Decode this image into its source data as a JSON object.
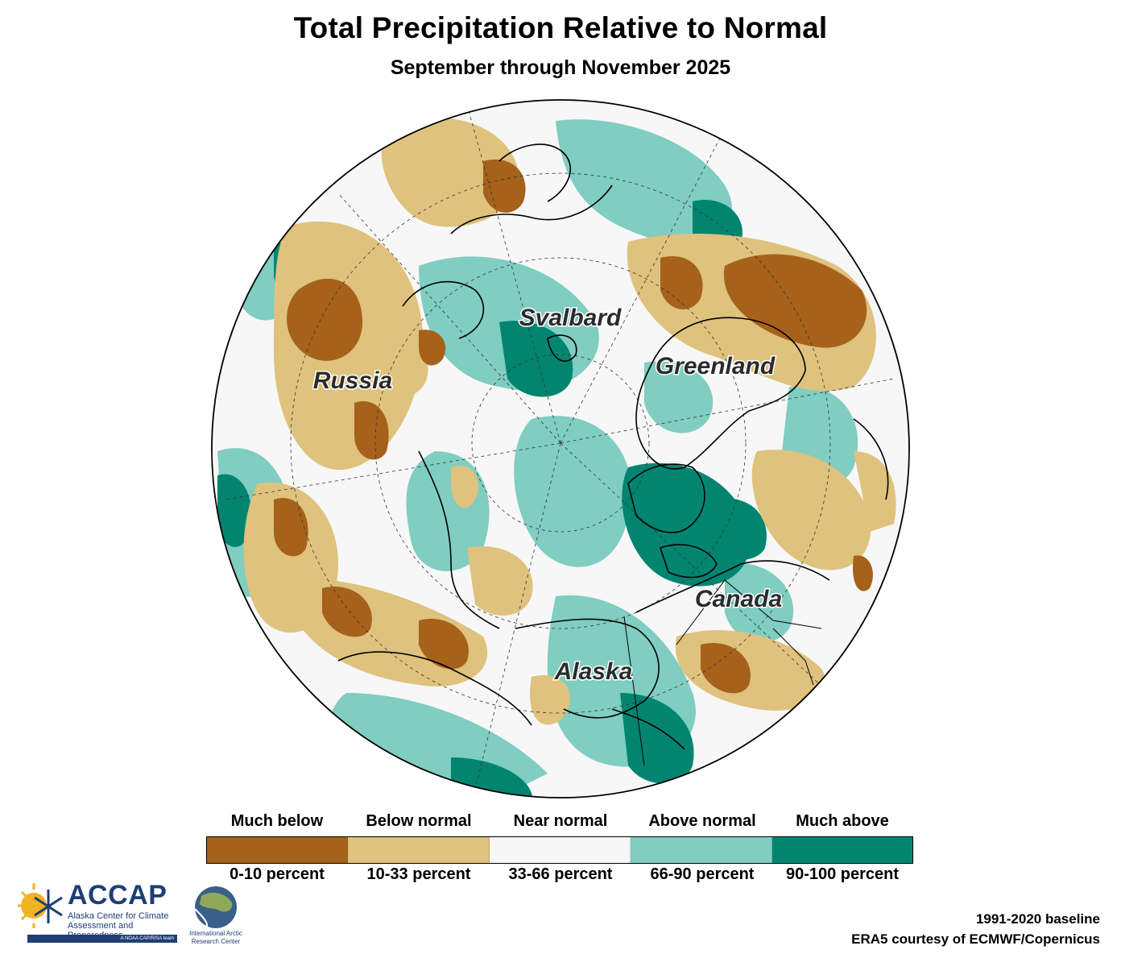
{
  "title": "Total Precipitation Relative to Normal",
  "subtitle": "September through November 2025",
  "regions": [
    {
      "name": "Svalbard"
    },
    {
      "name": "Greenland"
    },
    {
      "name": "Russia"
    },
    {
      "name": "Canada"
    },
    {
      "name": "Alaska"
    }
  ],
  "legend": {
    "categories": [
      {
        "name": "Much below",
        "range": "0-10 percent",
        "color": "#a6611a"
      },
      {
        "name": "Below normal",
        "range": "10-33 percent",
        "color": "#dfc27d"
      },
      {
        "name": "Near normal",
        "range": "33-66 percent",
        "color": "#f7f7f7"
      },
      {
        "name": "Above normal",
        "range": "66-90 percent",
        "color": "#80cdc1"
      },
      {
        "name": "Much above",
        "range": "90-100 percent",
        "color": "#018571"
      }
    ]
  },
  "credits": {
    "baseline": "1991-2020 baseline",
    "source": "ERA5 courtesy of ECMWF/Copernicus"
  },
  "logos": {
    "accap": {
      "name": "ACCAP",
      "full_name": "Alaska Center for Climate Assessment and Preparedness",
      "tagline": "A NOAA CAP/RISA team"
    },
    "iarc": {
      "name": "International Arctic Research Center"
    }
  }
}
